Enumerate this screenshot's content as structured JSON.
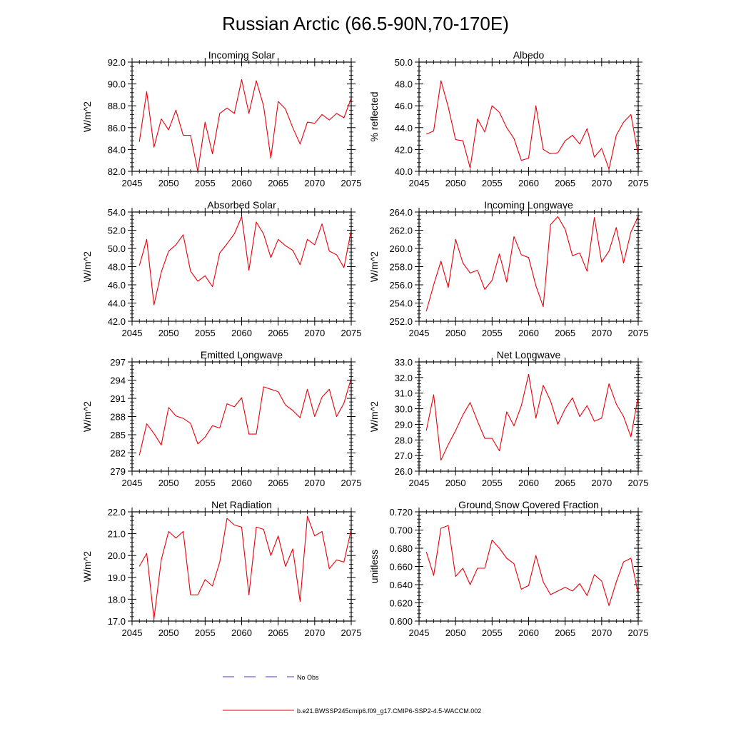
{
  "figure": {
    "title": "Russian Arctic (66.5-90N,70-170E)",
    "legend": [
      {
        "label": "No Obs",
        "color": "#3b3bd6",
        "style": "dashed"
      },
      {
        "label": "b.e21.BWSSP245cmip6.f09_g17.CMIP6-SSP2-4.5-WACCM.002",
        "color": "#e8000b",
        "style": "solid"
      }
    ]
  },
  "chart_data": [
    {
      "type": "line",
      "title": "Incoming Solar",
      "xlabel": "",
      "ylabel": "W/m^2",
      "xlim": [
        2045,
        2075
      ],
      "ylim": [
        82,
        92
      ],
      "xticks": [
        "2045",
        "2050",
        "2055",
        "2060",
        "2065",
        "2070",
        "2075"
      ],
      "yticks": [
        "82.0",
        "84.0",
        "86.0",
        "88.0",
        "90.0",
        "92.0"
      ],
      "grid": false,
      "color": "#e8000b",
      "x": [
        2046,
        2047,
        2048,
        2049,
        2050,
        2051,
        2052,
        2053,
        2054,
        2055,
        2056,
        2057,
        2058,
        2059,
        2060,
        2061,
        2062,
        2063,
        2064,
        2065,
        2066,
        2067,
        2068,
        2069,
        2070,
        2071,
        2072,
        2073,
        2074,
        2075
      ],
      "values": [
        84.7,
        89.3,
        84.2,
        86.8,
        85.8,
        87.6,
        85.3,
        85.3,
        82.0,
        86.5,
        83.6,
        87.3,
        87.8,
        87.3,
        90.4,
        87.3,
        90.3,
        88.0,
        83.2,
        88.4,
        87.7,
        86.0,
        84.5,
        86.5,
        86.4,
        87.2,
        86.7,
        87.3,
        86.9,
        88.7
      ]
    },
    {
      "type": "line",
      "title": "Albedo",
      "xlabel": "",
      "ylabel": "% reflected",
      "xlim": [
        2045,
        2075
      ],
      "ylim": [
        40,
        50
      ],
      "xticks": [
        "2045",
        "2050",
        "2055",
        "2060",
        "2065",
        "2070",
        "2075"
      ],
      "yticks": [
        "40.0",
        "42.0",
        "44.0",
        "46.0",
        "48.0",
        "50.0"
      ],
      "grid": false,
      "color": "#e8000b",
      "x": [
        2046,
        2047,
        2048,
        2049,
        2050,
        2051,
        2052,
        2053,
        2054,
        2055,
        2056,
        2057,
        2058,
        2059,
        2060,
        2061,
        2062,
        2063,
        2064,
        2065,
        2066,
        2067,
        2068,
        2069,
        2070,
        2071,
        2072,
        2073,
        2074,
        2075
      ],
      "values": [
        43.4,
        43.7,
        48.3,
        45.9,
        42.9,
        42.8,
        40.3,
        44.8,
        43.6,
        46.0,
        45.4,
        44.0,
        43.0,
        41.0,
        41.2,
        46.0,
        42.0,
        41.6,
        41.7,
        42.8,
        43.3,
        42.5,
        43.9,
        41.3,
        42.1,
        40.2,
        43.3,
        44.5,
        45.2,
        41.5
      ]
    },
    {
      "type": "line",
      "title": "Absorbed Solar",
      "xlabel": "",
      "ylabel": "W/m^2",
      "xlim": [
        2045,
        2075
      ],
      "ylim": [
        42,
        54
      ],
      "xticks": [
        "2045",
        "2050",
        "2055",
        "2060",
        "2065",
        "2070",
        "2075"
      ],
      "yticks": [
        "42.0",
        "44.0",
        "46.0",
        "48.0",
        "50.0",
        "52.0",
        "54.0"
      ],
      "grid": false,
      "color": "#e8000b",
      "x": [
        2046,
        2047,
        2048,
        2049,
        2050,
        2051,
        2052,
        2053,
        2054,
        2055,
        2056,
        2057,
        2058,
        2059,
        2060,
        2061,
        2062,
        2063,
        2064,
        2065,
        2066,
        2067,
        2068,
        2069,
        2070,
        2071,
        2072,
        2073,
        2074,
        2075
      ],
      "values": [
        48.1,
        51.0,
        43.8,
        47.4,
        49.7,
        50.4,
        51.5,
        47.5,
        46.4,
        47.0,
        45.8,
        49.5,
        50.5,
        51.6,
        53.5,
        47.6,
        52.9,
        51.6,
        49.0,
        51.0,
        50.3,
        49.8,
        48.2,
        51.0,
        50.4,
        52.7,
        49.7,
        49.3,
        47.9,
        52.0
      ]
    },
    {
      "type": "line",
      "title": "Incoming Longwave",
      "xlabel": "",
      "ylabel": "W/m^2",
      "xlim": [
        2045,
        2075
      ],
      "ylim": [
        252,
        264
      ],
      "xticks": [
        "2045",
        "2050",
        "2055",
        "2060",
        "2065",
        "2070",
        "2075"
      ],
      "yticks": [
        "252.0",
        "254.0",
        "256.0",
        "258.0",
        "260.0",
        "262.0",
        "264.0"
      ],
      "grid": false,
      "color": "#e8000b",
      "x": [
        2046,
        2047,
        2048,
        2049,
        2050,
        2051,
        2052,
        2053,
        2054,
        2055,
        2056,
        2057,
        2058,
        2059,
        2060,
        2061,
        2062,
        2063,
        2064,
        2065,
        2066,
        2067,
        2068,
        2069,
        2070,
        2071,
        2072,
        2073,
        2074,
        2075
      ],
      "values": [
        253.1,
        256.0,
        258.6,
        255.7,
        261.0,
        258.4,
        257.3,
        257.6,
        255.5,
        256.5,
        259.4,
        256.3,
        261.3,
        259.3,
        259.0,
        255.9,
        253.6,
        262.6,
        263.5,
        262.1,
        259.2,
        259.5,
        257.5,
        263.4,
        258.5,
        259.7,
        262.3,
        258.4,
        261.8,
        263.5
      ]
    },
    {
      "type": "line",
      "title": "Emitted Longwave",
      "xlabel": "",
      "ylabel": "W/m^2",
      "xlim": [
        2045,
        2075
      ],
      "ylim": [
        279,
        297
      ],
      "xticks": [
        "2045",
        "2050",
        "2055",
        "2060",
        "2065",
        "2070",
        "2075"
      ],
      "yticks": [
        "279",
        "282",
        "285",
        "288",
        "291",
        "294",
        "297"
      ],
      "grid": false,
      "color": "#e8000b",
      "x": [
        2046,
        2047,
        2048,
        2049,
        2050,
        2051,
        2052,
        2053,
        2054,
        2055,
        2056,
        2057,
        2058,
        2059,
        2060,
        2061,
        2062,
        2063,
        2064,
        2065,
        2066,
        2067,
        2068,
        2069,
        2070,
        2071,
        2072,
        2073,
        2074,
        2075
      ],
      "values": [
        281.6,
        286.8,
        285.2,
        283.3,
        289.5,
        288.1,
        287.7,
        286.9,
        283.5,
        284.6,
        286.5,
        286.1,
        290.1,
        289.6,
        291.1,
        285.1,
        285.1,
        292.9,
        292.5,
        292.1,
        289.9,
        289.0,
        287.8,
        292.5,
        288.0,
        291.2,
        292.5,
        288.0,
        290.2,
        294.3
      ]
    },
    {
      "type": "line",
      "title": "Net Longwave",
      "xlabel": "",
      "ylabel": "W/m^2",
      "xlim": [
        2045,
        2075
      ],
      "ylim": [
        26,
        33
      ],
      "xticks": [
        "2045",
        "2050",
        "2055",
        "2060",
        "2065",
        "2070",
        "2075"
      ],
      "yticks": [
        "26.0",
        "27.0",
        "28.0",
        "29.0",
        "30.0",
        "31.0",
        "32.0",
        "33.0"
      ],
      "grid": false,
      "color": "#e8000b",
      "x": [
        2046,
        2047,
        2048,
        2049,
        2050,
        2051,
        2052,
        2053,
        2054,
        2055,
        2056,
        2057,
        2058,
        2059,
        2060,
        2061,
        2062,
        2063,
        2064,
        2065,
        2066,
        2067,
        2068,
        2069,
        2070,
        2071,
        2072,
        2073,
        2074,
        2075
      ],
      "values": [
        28.6,
        30.9,
        26.7,
        27.7,
        28.6,
        29.6,
        30.4,
        29.2,
        28.1,
        28.1,
        27.3,
        29.8,
        28.9,
        30.2,
        32.2,
        29.4,
        31.5,
        30.5,
        29.0,
        30.0,
        30.7,
        29.5,
        30.2,
        29.2,
        29.4,
        31.6,
        30.3,
        29.5,
        28.2,
        30.8
      ]
    },
    {
      "type": "line",
      "title": "Net Radiation",
      "xlabel": "",
      "ylabel": "W/m^2",
      "xlim": [
        2045,
        2075
      ],
      "ylim": [
        17,
        22
      ],
      "xticks": [
        "2045",
        "2050",
        "2055",
        "2060",
        "2065",
        "2070",
        "2075"
      ],
      "yticks": [
        "17.0",
        "18.0",
        "19.0",
        "20.0",
        "21.0",
        "22.0"
      ],
      "grid": false,
      "color": "#e8000b",
      "x": [
        2046,
        2047,
        2048,
        2049,
        2050,
        2051,
        2052,
        2053,
        2054,
        2055,
        2056,
        2057,
        2058,
        2059,
        2060,
        2061,
        2062,
        2063,
        2064,
        2065,
        2066,
        2067,
        2068,
        2069,
        2070,
        2071,
        2072,
        2073,
        2074,
        2075
      ],
      "values": [
        19.5,
        20.1,
        17.1,
        19.8,
        21.1,
        20.8,
        21.1,
        18.2,
        18.2,
        18.9,
        18.6,
        19.7,
        21.7,
        21.4,
        21.3,
        18.2,
        21.3,
        21.2,
        20.0,
        20.9,
        19.5,
        20.3,
        17.9,
        21.8,
        20.9,
        21.1,
        19.4,
        19.8,
        19.7,
        21.2
      ]
    },
    {
      "type": "line",
      "title": "Ground Snow Covered Fraction",
      "xlabel": "",
      "ylabel": "unitless",
      "xlim": [
        2045,
        2075
      ],
      "ylim": [
        0.6,
        0.72
      ],
      "xticks": [
        "2045",
        "2050",
        "2055",
        "2060",
        "2065",
        "2070",
        "2075"
      ],
      "yticks": [
        "0.600",
        "0.620",
        "0.640",
        "0.660",
        "0.680",
        "0.700",
        "0.720"
      ],
      "grid": false,
      "color": "#e8000b",
      "x": [
        2046,
        2047,
        2048,
        2049,
        2050,
        2051,
        2052,
        2053,
        2054,
        2055,
        2056,
        2057,
        2058,
        2059,
        2060,
        2061,
        2062,
        2063,
        2064,
        2065,
        2066,
        2067,
        2068,
        2069,
        2070,
        2071,
        2072,
        2073,
        2074,
        2075
      ],
      "values": [
        0.676,
        0.65,
        0.702,
        0.705,
        0.649,
        0.658,
        0.64,
        0.658,
        0.658,
        0.689,
        0.68,
        0.669,
        0.663,
        0.635,
        0.639,
        0.672,
        0.643,
        0.629,
        0.633,
        0.637,
        0.633,
        0.641,
        0.628,
        0.651,
        0.644,
        0.617,
        0.643,
        0.665,
        0.669,
        0.63
      ]
    }
  ]
}
